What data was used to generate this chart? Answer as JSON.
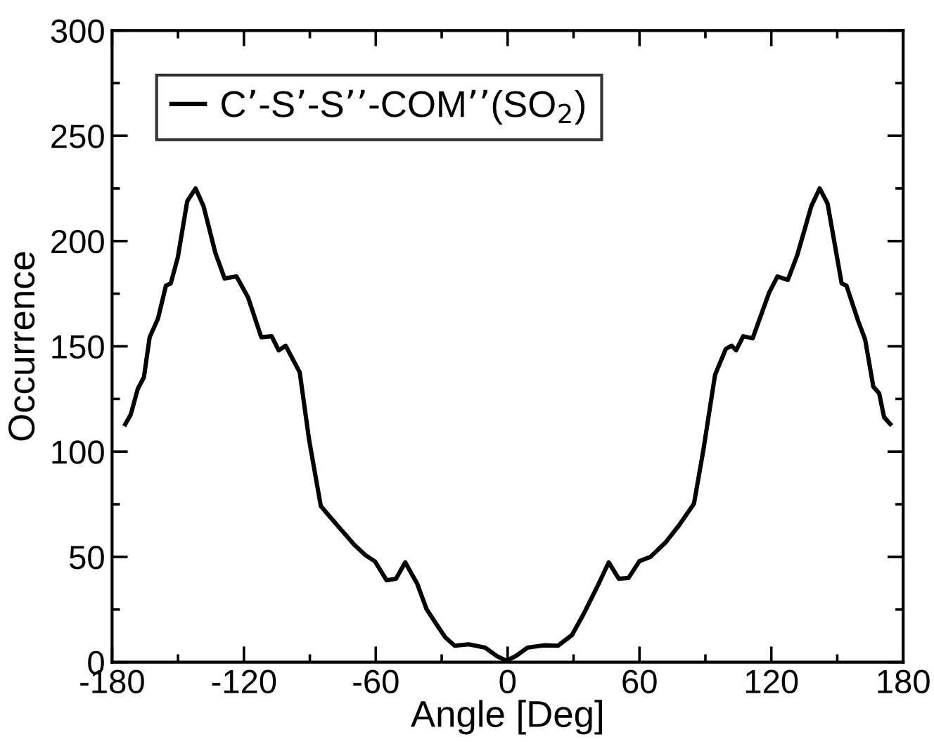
{
  "chart_data": {
    "type": "line",
    "xlabel": "Angle [Deg]",
    "ylabel": "Occurrence",
    "xlim": [
      -180,
      180
    ],
    "ylim": [
      0,
      300
    ],
    "xticks": [
      -180,
      -120,
      -60,
      0,
      60,
      120,
      180
    ],
    "yticks": [
      0,
      50,
      100,
      150,
      200,
      250,
      300
    ],
    "grid": false,
    "legend": "top left",
    "marker": "none",
    "line_style": "solid",
    "series": [
      {
        "name": "C’-S’-S’’-COM’’(SO$_{2}$)",
        "color": "#000000",
        "x": [
          -174,
          -171.5,
          -168.3,
          -165.5,
          -162.9,
          -159.1,
          -155.5,
          -153.3,
          -150.1,
          -145.8,
          -142,
          -138.4,
          -133,
          -128.8,
          -123.4,
          -118.1,
          -112.1,
          -107.4,
          -104.2,
          -101,
          -94.6,
          -90.3,
          -85,
          -80,
          -75,
          -70,
          -64.7,
          -60.4,
          -55.1,
          -50.8,
          -46.6,
          -41.2,
          -36.9,
          -32.7,
          -28.4,
          -24.1,
          -17.7,
          -10.2,
          -4.9,
          -0.6,
          3.7,
          9,
          16.5,
          22.9,
          29.3,
          34.6,
          41,
          46,
          50.6,
          55,
          60,
          65,
          72,
          78,
          80,
          84.8,
          89.1,
          94.4,
          99.3,
          101.9,
          104,
          107.2,
          111.5,
          119,
          122.8,
          127.5,
          131.8,
          138.2,
          142,
          145.6,
          152,
          154.2,
          159.5,
          162.7,
          166.4,
          169.1,
          171.3,
          174.1
        ],
        "values": [
          113,
          117.6,
          129.8,
          135.4,
          154.3,
          163.2,
          178.8,
          179.9,
          192.2,
          218.9,
          225,
          216.6,
          194.4,
          182.2,
          183.2,
          173.2,
          154.3,
          154.8,
          148.1,
          150.3,
          137.6,
          105.3,
          74.1,
          68,
          62,
          56,
          50.8,
          47.9,
          38.9,
          39.6,
          47.4,
          37.4,
          25.2,
          18.5,
          11.8,
          7.8,
          8.5,
          6.9,
          2.9,
          0.7,
          2.9,
          6.9,
          8,
          7.8,
          12.9,
          22.9,
          36.3,
          47.4,
          39.6,
          40,
          48,
          50,
          57,
          65,
          68,
          75.3,
          100.9,
          136.5,
          148.8,
          150.3,
          148.1,
          154.8,
          153.8,
          175.5,
          183.2,
          181.5,
          193.3,
          216.6,
          225,
          217.8,
          179.9,
          178.8,
          162.1,
          153.2,
          130.9,
          127.6,
          116.4,
          113.1
        ]
      }
    ]
  }
}
